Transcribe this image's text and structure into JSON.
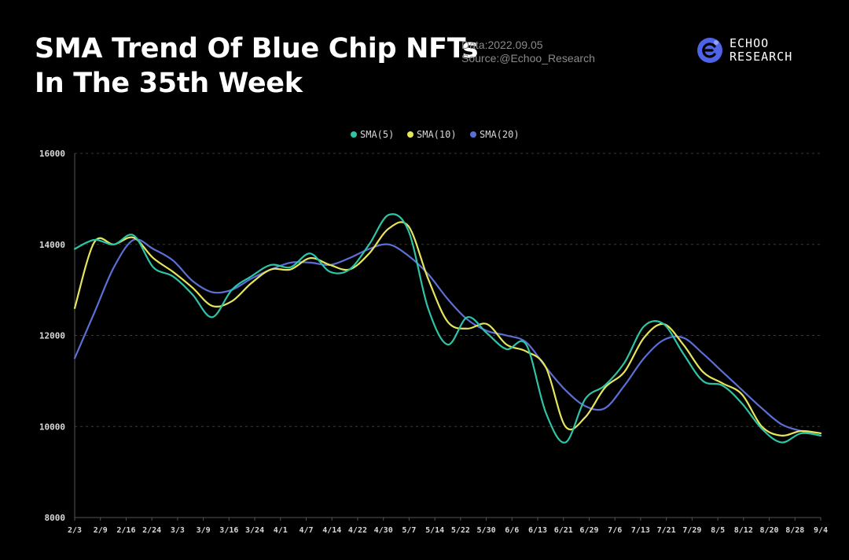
{
  "header": {
    "title_line1": "SMA Trend Of Blue Chip NFTs",
    "title_line2": "In The 35th Week",
    "date": "Data:2022.09.05",
    "source": "Source:@Echoo_Research"
  },
  "logo": {
    "line1": "ECHOO",
    "line2": "RESEARCH",
    "icon": "echoo-logo-icon",
    "color": "#4f63e6"
  },
  "chart_data": {
    "type": "line",
    "title": "SMA Trend Of Blue Chip NFTs In The 35th Week",
    "xlabel": "",
    "ylabel": "",
    "ylim": [
      8000,
      16000
    ],
    "yticks": [
      8000,
      10000,
      12000,
      14000,
      16000
    ],
    "grid": true,
    "legend_position": "top-center",
    "x_tick_labels": [
      "2/3",
      "2/9",
      "2/16",
      "2/24",
      "3/3",
      "3/9",
      "3/16",
      "3/24",
      "4/1",
      "4/7",
      "4/14",
      "4/22",
      "4/30",
      "5/7",
      "5/14",
      "5/22",
      "5/30",
      "6/6",
      "6/13",
      "6/21",
      "6/29",
      "7/6",
      "7/13",
      "7/21",
      "7/29",
      "8/5",
      "8/12",
      "8/20",
      "8/28",
      "9/4"
    ],
    "series": [
      {
        "name": "SMA(5)",
        "color": "#2ec4a6",
        "values": [
          13900,
          14100,
          14000,
          14200,
          13500,
          13300,
          12900,
          12400,
          13000,
          13300,
          13550,
          13500,
          13800,
          13400,
          13450,
          14000,
          14650,
          14300,
          12600,
          11800,
          12400,
          12050,
          11700,
          11800,
          10300,
          9650,
          10600,
          10900,
          11400,
          12200,
          12250,
          11600,
          11000,
          10900,
          10500,
          9950,
          9650,
          9850,
          9800
        ]
      },
      {
        "name": "SMA(10)",
        "color": "#e6e65c",
        "values": [
          12600,
          14050,
          14000,
          14150,
          13700,
          13400,
          13050,
          12650,
          12750,
          13150,
          13450,
          13450,
          13700,
          13550,
          13450,
          13800,
          14350,
          14400,
          13250,
          12300,
          12150,
          12250,
          11800,
          11650,
          11300,
          10000,
          10200,
          10850,
          11200,
          11950,
          12250,
          11800,
          11200,
          10950,
          10700,
          10000,
          9800,
          9900,
          9850
        ]
      },
      {
        "name": "SMA(20)",
        "color": "#5b6fd6",
        "values": [
          11500,
          12500,
          13500,
          14100,
          13900,
          13650,
          13200,
          12950,
          13000,
          13250,
          13450,
          13600,
          13600,
          13550,
          13700,
          13900,
          14000,
          13750,
          13350,
          12800,
          12350,
          12100,
          12000,
          11850,
          11300,
          10800,
          10450,
          10400,
          10900,
          11500,
          11900,
          11950,
          11600,
          11200,
          10800,
          10400,
          10050,
          9900,
          9800
        ]
      }
    ]
  }
}
